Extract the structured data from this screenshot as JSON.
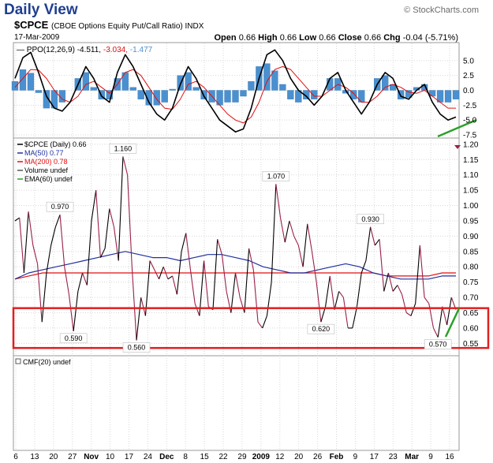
{
  "header": {
    "title": "Daily View",
    "credit": "© StockCharts.com",
    "ticker": "$CPCE",
    "ticker_desc": "(CBOE Options Equity Put/Call Ratio) INDX",
    "date": "17-Mar-2009",
    "ohlc": {
      "open_label": "Open",
      "open": "0.66",
      "high_label": "High",
      "high": "0.66",
      "low_label": "Low",
      "low": "0.66",
      "close_label": "Close",
      "close": "0.66",
      "chg_label": "Chg",
      "chg": "-0.04 (-5.71%)"
    }
  },
  "colors": {
    "price": "#9a1f4a",
    "price_up": "#000000",
    "ma50": "#1f2f9f",
    "ma200": "#e01010",
    "ppo_line": "#000000",
    "ppo_signal": "#e01010",
    "ppo_hist": "#4a90d0",
    "highlight_box": "#e02020",
    "annotation": "#2aa02a",
    "grid": "#d8d8d8"
  },
  "chart_data": [
    {
      "type": "line",
      "title": "PPO(12,26,9)",
      "legend": {
        "label": "PPO(12,26,9)",
        "ppo": "-4.511",
        "signal": "-3.034",
        "histogram": "-1.477"
      },
      "ylim": [
        -7.5,
        7.5
      ],
      "yticks": [
        "5.0",
        "2.5",
        "0.0",
        "-2.5",
        "-5.0",
        "-7.5"
      ],
      "ytick_values": [
        5.0,
        2.5,
        0.0,
        -2.5,
        -5.0,
        -7.5
      ],
      "series": [
        {
          "name": "PPO",
          "values": [
            2.0,
            5.5,
            6.4,
            3.0,
            -1.0,
            -3.0,
            -3.5,
            -2.0,
            1.0,
            4.0,
            2.0,
            -1.0,
            -2.0,
            3.0,
            6.0,
            4.0,
            1.0,
            -2.0,
            -4.0,
            -5.0,
            -3.0,
            1.0,
            4.0,
            2.0,
            -1.0,
            -3.0,
            -5.0,
            -6.0,
            -7.0,
            -6.5,
            -3.0,
            2.0,
            6.0,
            6.8,
            5.0,
            2.0,
            0.0,
            -1.0,
            -2.5,
            -1.0,
            2.0,
            3.0,
            0.0,
            -2.0,
            -4.0,
            -2.0,
            1.0,
            3.0,
            2.0,
            -1.0,
            -1.5,
            0.0,
            1.0,
            -2.0,
            -4.0,
            -5.0,
            -4.5
          ]
        },
        {
          "name": "Signal",
          "values": [
            0.5,
            2.0,
            3.5,
            3.4,
            2.0,
            0.0,
            -1.5,
            -2.0,
            -1.0,
            1.0,
            1.5,
            0.5,
            -0.5,
            1.0,
            3.0,
            3.5,
            2.5,
            0.5,
            -1.5,
            -3.0,
            -3.2,
            -1.5,
            1.0,
            1.5,
            0.5,
            -1.0,
            -2.5,
            -4.0,
            -5.0,
            -5.5,
            -4.5,
            -2.0,
            1.5,
            3.5,
            4.0,
            3.5,
            2.0,
            0.5,
            -1.0,
            -1.0,
            0.0,
            1.0,
            0.5,
            -0.5,
            -2.0,
            -2.0,
            -1.0,
            0.5,
            1.0,
            0.5,
            -0.3,
            -0.5,
            0.0,
            -1.0,
            -2.0,
            -3.0,
            -3.0
          ]
        },
        {
          "name": "Histogram",
          "values": [
            1.5,
            3.5,
            2.9,
            -0.4,
            -3.0,
            -3.0,
            -2.0,
            0.0,
            2.0,
            3.0,
            0.5,
            -1.5,
            -1.5,
            2.0,
            3.0,
            0.5,
            -1.5,
            -2.5,
            -2.5,
            -2.0,
            0.2,
            2.5,
            3.0,
            0.5,
            -1.5,
            -2.0,
            -2.5,
            -2.0,
            -2.0,
            -1.0,
            1.5,
            4.0,
            4.5,
            3.3,
            1.0,
            -1.5,
            -2.0,
            -1.5,
            -1.5,
            0.0,
            2.0,
            2.0,
            -0.5,
            -1.5,
            -2.0,
            0.0,
            2.0,
            2.5,
            1.0,
            -1.5,
            -1.2,
            0.5,
            1.0,
            -1.0,
            -2.0,
            -2.0,
            -1.5
          ]
        }
      ]
    },
    {
      "type": "line",
      "title": "$CPCE (Daily)",
      "legend": [
        {
          "label": "$CPCE (Daily) 0.66"
        },
        {
          "label": "MA(50) 0.77"
        },
        {
          "label": "MA(200) 0.78"
        },
        {
          "label": "Volume undef"
        },
        {
          "label": "EMA(60) undef"
        }
      ],
      "ylim": [
        0.52,
        1.21
      ],
      "yticks": [
        "1.20",
        "1.15",
        "1.10",
        "1.05",
        "1.00",
        "0.95",
        "0.90",
        "0.85",
        "0.80",
        "0.75",
        "0.70",
        "0.65",
        "0.60",
        "0.55"
      ],
      "ytick_values": [
        1.2,
        1.15,
        1.1,
        1.05,
        1.0,
        0.95,
        0.9,
        0.85,
        0.8,
        0.75,
        0.7,
        0.65,
        0.6,
        0.55
      ],
      "series": [
        {
          "name": "$CPCE",
          "values": [
            0.95,
            0.96,
            0.78,
            0.98,
            0.87,
            0.81,
            0.62,
            0.78,
            0.87,
            0.93,
            0.97,
            0.8,
            0.71,
            0.59,
            0.72,
            0.78,
            0.74,
            0.95,
            1.05,
            0.83,
            0.86,
            0.99,
            0.93,
            0.82,
            1.16,
            1.1,
            0.8,
            0.56,
            0.7,
            0.64,
            0.82,
            0.79,
            0.76,
            0.8,
            0.76,
            0.77,
            0.71,
            0.85,
            0.91,
            0.79,
            0.68,
            0.64,
            0.82,
            0.67,
            0.66,
            0.89,
            0.84,
            0.72,
            0.65,
            0.78,
            0.7,
            0.65,
            0.86,
            0.79,
            0.62,
            0.6,
            0.64,
            0.75,
            1.07,
            0.96,
            0.88,
            0.95,
            0.9,
            0.87,
            0.8,
            0.94,
            0.85,
            0.75,
            0.62,
            0.67,
            0.77,
            0.66,
            0.72,
            0.7,
            0.6,
            0.6,
            0.67,
            0.78,
            0.82,
            0.93,
            0.87,
            0.89,
            0.72,
            0.78,
            0.72,
            0.74,
            0.71,
            0.65,
            0.64,
            0.68,
            0.87,
            0.7,
            0.68,
            0.6,
            0.57,
            0.67,
            0.61,
            0.7,
            0.66
          ]
        },
        {
          "name": "MA(50)",
          "values": [
            0.76,
            0.78,
            0.79,
            0.8,
            0.81,
            0.82,
            0.83,
            0.84,
            0.85,
            0.84,
            0.83,
            0.83,
            0.82,
            0.83,
            0.84,
            0.84,
            0.83,
            0.82,
            0.8,
            0.79,
            0.78,
            0.78,
            0.79,
            0.8,
            0.81,
            0.8,
            0.78,
            0.77,
            0.76,
            0.76,
            0.76,
            0.77,
            0.77
          ]
        },
        {
          "name": "MA(200)",
          "values": [
            0.76,
            0.77,
            0.78,
            0.78,
            0.78,
            0.78,
            0.78,
            0.78,
            0.78,
            0.78,
            0.78,
            0.78,
            0.78,
            0.78,
            0.78,
            0.78,
            0.78,
            0.78,
            0.78,
            0.78,
            0.78,
            0.78,
            0.78,
            0.78,
            0.78,
            0.78,
            0.78,
            0.77,
            0.77,
            0.77,
            0.77,
            0.78,
            0.78
          ]
        }
      ],
      "annotations": [
        {
          "label": "1.160",
          "x_index": 24,
          "value": 1.16
        },
        {
          "label": "0.970",
          "x_index": 10,
          "value": 0.97
        },
        {
          "label": "0.590",
          "x_index": 13,
          "value": 0.59
        },
        {
          "label": "0.560",
          "x_index": 27,
          "value": 0.56
        },
        {
          "label": "1.070",
          "x_index": 58,
          "value": 1.07
        },
        {
          "label": "0.620",
          "x_index": 68,
          "value": 0.62
        },
        {
          "label": "0.930",
          "x_index": 79,
          "value": 0.93
        },
        {
          "label": "0.570",
          "x_index": 94,
          "value": 0.57
        }
      ],
      "highlight_range": [
        0.535,
        0.665
      ]
    },
    {
      "type": "line",
      "title": "CMF(20)",
      "legend": {
        "label": "CMF(20) undef"
      },
      "series": []
    }
  ],
  "x_axis": {
    "labels": [
      {
        "text": "6",
        "bold": false
      },
      {
        "text": "13",
        "bold": false
      },
      {
        "text": "20",
        "bold": false
      },
      {
        "text": "27",
        "bold": false
      },
      {
        "text": "Nov",
        "bold": true
      },
      {
        "text": "10",
        "bold": false
      },
      {
        "text": "17",
        "bold": false
      },
      {
        "text": "24",
        "bold": false
      },
      {
        "text": "Dec",
        "bold": true
      },
      {
        "text": "8",
        "bold": false
      },
      {
        "text": "15",
        "bold": false
      },
      {
        "text": "22",
        "bold": false
      },
      {
        "text": "29",
        "bold": false
      },
      {
        "text": "2009",
        "bold": true
      },
      {
        "text": "12",
        "bold": false
      },
      {
        "text": "20",
        "bold": false
      },
      {
        "text": "26",
        "bold": false
      },
      {
        "text": "Feb",
        "bold": true
      },
      {
        "text": "9",
        "bold": false
      },
      {
        "text": "17",
        "bold": false
      },
      {
        "text": "23",
        "bold": false
      },
      {
        "text": "Mar",
        "bold": true
      },
      {
        "text": "9",
        "bold": false
      },
      {
        "text": "16",
        "bold": false
      }
    ]
  }
}
